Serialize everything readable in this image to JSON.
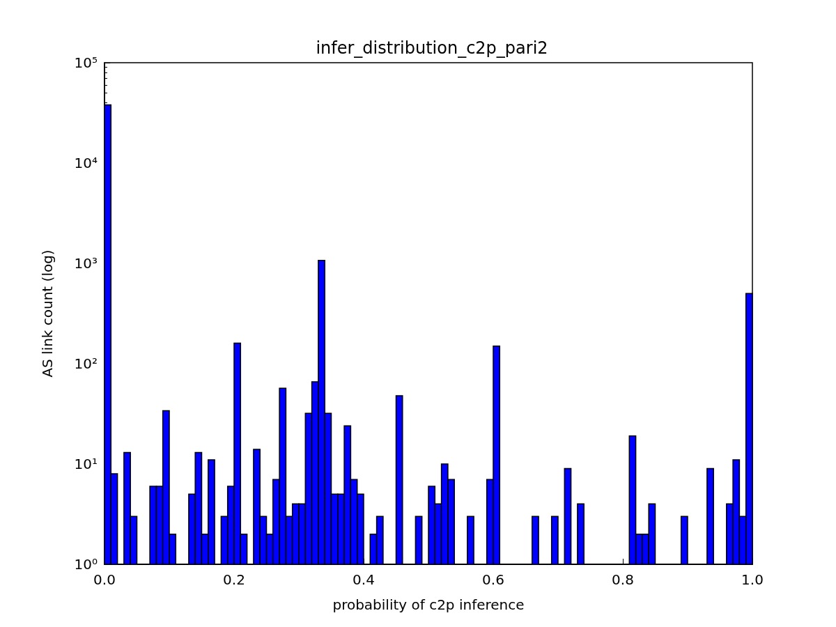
{
  "chart_data": {
    "type": "histogram",
    "title": "infer_distribution_c2p_pari2",
    "xlabel": "probability of c2p inference",
    "ylabel": "AS link count (log)",
    "bins": [
      0,
      0.01,
      0.02,
      0.03,
      0.04,
      0.05,
      0.06,
      0.07,
      0.08,
      0.09,
      0.1,
      0.11,
      0.12,
      0.13,
      0.14,
      0.15,
      0.16,
      0.17,
      0.18,
      0.19,
      0.2,
      0.21,
      0.22,
      0.23,
      0.24,
      0.25,
      0.26,
      0.27,
      0.28,
      0.29,
      0.3,
      0.31,
      0.32,
      0.33,
      0.34,
      0.35,
      0.36,
      0.37,
      0.38,
      0.39,
      0.4,
      0.41,
      0.42,
      0.43,
      0.44,
      0.45,
      0.46,
      0.47,
      0.48,
      0.49,
      0.5,
      0.51,
      0.52,
      0.53,
      0.54,
      0.55,
      0.56,
      0.57,
      0.58,
      0.59,
      0.6,
      0.61,
      0.62,
      0.63,
      0.64,
      0.65,
      0.66,
      0.67,
      0.68,
      0.69,
      0.7,
      0.71,
      0.72,
      0.73,
      0.74,
      0.75,
      0.76,
      0.77,
      0.78,
      0.79,
      0.8,
      0.81,
      0.82,
      0.83,
      0.84,
      0.85,
      0.86,
      0.87,
      0.88,
      0.89,
      0.9,
      0.91,
      0.92,
      0.93,
      0.94,
      0.95,
      0.96,
      0.97,
      0.98,
      0.99,
      1
    ],
    "values": [
      38000,
      8,
      null,
      13,
      3,
      null,
      null,
      6,
      6,
      34,
      2,
      null,
      null,
      5,
      13,
      2,
      11,
      null,
      3,
      6,
      160,
      2,
      null,
      14,
      3,
      2,
      7,
      57,
      3,
      4,
      4,
      32,
      66,
      1070,
      32,
      5,
      5,
      24,
      7,
      5,
      null,
      2,
      3,
      null,
      null,
      48,
      null,
      null,
      3,
      null,
      6,
      4,
      10,
      7,
      null,
      null,
      3,
      null,
      null,
      7,
      150,
      null,
      null,
      null,
      null,
      null,
      3,
      null,
      null,
      3,
      null,
      9,
      null,
      4,
      null,
      null,
      null,
      null,
      null,
      null,
      null,
      19,
      2,
      2,
      4,
      null,
      null,
      null,
      null,
      3,
      null,
      null,
      null,
      9,
      null,
      null,
      4,
      11,
      3,
      500
    ],
    "color": "#0000ff",
    "log": "y",
    "xlim": [
      0,
      1
    ],
    "xticks": [
      {
        "value": 0,
        "label": "0.0"
      },
      {
        "value": 0.2,
        "label": "0.2"
      },
      {
        "value": 0.4,
        "label": "0.4"
      },
      {
        "value": 0.6,
        "label": "0.6"
      },
      {
        "value": 0.8,
        "label": "0.8"
      },
      {
        "value": 1,
        "label": "1.0"
      }
    ],
    "ylim": [
      1,
      100000
    ],
    "yticks": [
      {
        "value": 1,
        "label": "10⁰"
      },
      {
        "value": 10,
        "label": "10¹"
      },
      {
        "value": 100,
        "label": "10²"
      },
      {
        "value": 1000,
        "label": "10³"
      },
      {
        "value": 10000,
        "label": "10⁴"
      },
      {
        "value": 100000,
        "label": "10⁵"
      }
    ],
    "grid": false
  }
}
